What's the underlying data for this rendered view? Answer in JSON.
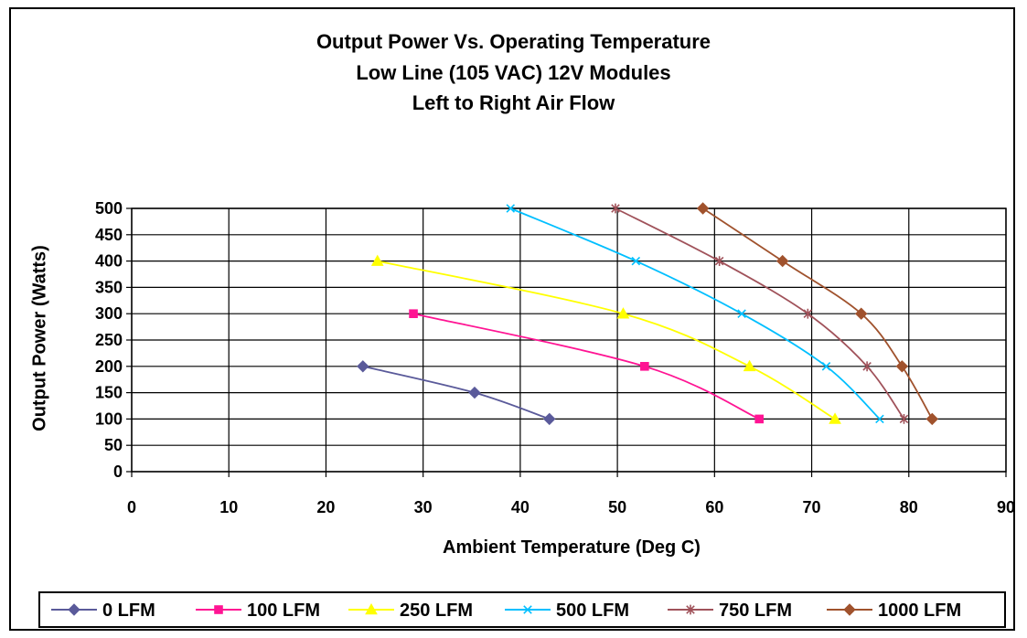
{
  "chart_data": {
    "type": "line",
    "title_lines": [
      "Output Power Vs. Operating Temperature",
      "Low Line (105 VAC) 12V Modules",
      "Left to Right Air Flow"
    ],
    "xlabel": "Ambient Temperature (Deg C)",
    "ylabel": "Output Power (Watts)",
    "xlim": [
      0,
      90
    ],
    "ylim": [
      0,
      500
    ],
    "xticks": [
      "0",
      "10",
      "20",
      "30",
      "40",
      "50",
      "60",
      "70",
      "80",
      "90"
    ],
    "yticks": [
      "0",
      "50",
      "100",
      "150",
      "200",
      "250",
      "300",
      "350",
      "400",
      "450",
      "500"
    ],
    "grid": true,
    "legend_position": "bottom",
    "series": [
      {
        "name": "0 LFM",
        "color": "#5a5a9a",
        "marker": "diamond",
        "points": [
          [
            23.8,
            200
          ],
          [
            35.3,
            150
          ],
          [
            43.0,
            100
          ]
        ]
      },
      {
        "name": "100 LFM",
        "color": "#ff1493",
        "marker": "square",
        "points": [
          [
            29.0,
            300
          ],
          [
            52.8,
            200
          ],
          [
            64.6,
            100
          ]
        ]
      },
      {
        "name": "250 LFM",
        "color": "#ffff00",
        "marker": "triangle",
        "points": [
          [
            25.3,
            400
          ],
          [
            50.6,
            300
          ],
          [
            63.6,
            200
          ],
          [
            72.4,
            100
          ]
        ]
      },
      {
        "name": "500 LFM",
        "color": "#00bfff",
        "marker": "x",
        "points": [
          [
            39.0,
            500
          ],
          [
            51.9,
            400
          ],
          [
            62.8,
            300
          ],
          [
            71.5,
            200
          ],
          [
            77.0,
            100
          ]
        ]
      },
      {
        "name": "750 LFM",
        "color": "#a0525a",
        "marker": "star",
        "points": [
          [
            49.8,
            500
          ],
          [
            60.5,
            400
          ],
          [
            69.6,
            300
          ],
          [
            75.7,
            200
          ],
          [
            79.5,
            100
          ]
        ]
      },
      {
        "name": "1000 LFM",
        "color": "#a0522d",
        "marker": "diamond",
        "points": [
          [
            58.8,
            500
          ],
          [
            67.0,
            400
          ],
          [
            75.1,
            300
          ],
          [
            79.3,
            200
          ],
          [
            82.4,
            100
          ]
        ]
      }
    ]
  }
}
